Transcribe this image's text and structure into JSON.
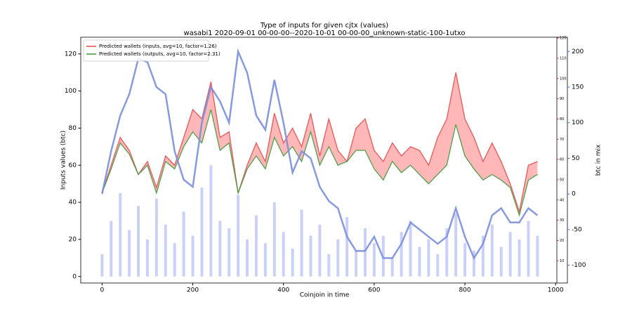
{
  "chart_data": {
    "type": "line",
    "title": "Type of inputs for given cjtx (values)",
    "subtitle": "wasabi1 2020-09-01 00-00-00--2020-10-01 00-00-00_unknown-static-100-1utxo",
    "x_label": "Coinjoin in time",
    "y_label": "Inputs values (btc)",
    "y2_label": "btc in mix",
    "x": [
      0,
      20,
      40,
      60,
      80,
      100,
      120,
      140,
      160,
      180,
      200,
      220,
      240,
      260,
      280,
      300,
      320,
      340,
      360,
      380,
      400,
      420,
      440,
      460,
      480,
      500,
      520,
      540,
      560,
      580,
      600,
      620,
      640,
      660,
      680,
      700,
      720,
      740,
      760,
      780,
      800,
      820,
      840,
      860,
      880,
      900,
      920,
      940,
      960
    ],
    "series": [
      {
        "name": "Predicted wallets (inputs, avg=10, factor=1.26)",
        "color": "#e8494a",
        "values": [
          45,
          60,
          75,
          68,
          55,
          62,
          48,
          65,
          60,
          75,
          90,
          85,
          105,
          75,
          78,
          45,
          60,
          72,
          62,
          88,
          72,
          80,
          70,
          88,
          65,
          85,
          68,
          62,
          80,
          85,
          68,
          62,
          72,
          65,
          70,
          68,
          60,
          75,
          85,
          110,
          85,
          75,
          62,
          72,
          62,
          50,
          35,
          60,
          62
        ]
      },
      {
        "name": "Predicted wallets (outputs, avg=10, factor=2.31)",
        "color": "#3a9a3a",
        "values": [
          45,
          58,
          72,
          66,
          55,
          60,
          45,
          62,
          58,
          70,
          78,
          72,
          90,
          68,
          72,
          45,
          58,
          65,
          58,
          75,
          65,
          70,
          62,
          78,
          60,
          70,
          60,
          62,
          68,
          68,
          58,
          52,
          62,
          56,
          60,
          55,
          50,
          55,
          60,
          82,
          65,
          58,
          52,
          55,
          52,
          48,
          33,
          52,
          55
        ]
      },
      {
        "color": "#7b8fdc",
        "axis": "y2",
        "style": "line",
        "values": [
          0,
          60,
          110,
          140,
          190,
          185,
          150,
          140,
          60,
          20,
          10,
          100,
          150,
          130,
          100,
          200,
          170,
          110,
          90,
          160,
          100,
          30,
          60,
          50,
          10,
          -10,
          -20,
          -60,
          -80,
          -80,
          -60,
          -90,
          -90,
          -70,
          -40,
          -50,
          -60,
          -70,
          -60,
          -20,
          -60,
          -90,
          -70,
          -30,
          -20,
          -40,
          -40,
          -20,
          -30
        ]
      },
      {
        "color": "#a9b0f3",
        "style": "bar",
        "values": [
          12,
          30,
          45,
          25,
          38,
          20,
          42,
          28,
          18,
          35,
          22,
          48,
          60,
          30,
          26,
          44,
          20,
          33,
          18,
          40,
          24,
          15,
          36,
          22,
          28,
          12,
          20,
          32,
          14,
          26,
          18,
          22,
          10,
          24,
          30,
          16,
          20,
          12,
          26,
          34,
          18,
          14,
          22,
          28,
          16,
          24,
          20,
          30,
          22
        ]
      }
    ],
    "fill_color": "#ffaaaa",
    "xlim": [
      -47,
      1026
    ],
    "xticks": [
      0,
      200,
      400,
      600,
      800,
      1000
    ],
    "ylim": [
      -3.5,
      129
    ],
    "yticks": [
      0,
      20,
      40,
      60,
      80,
      100,
      120
    ],
    "y2lim": [
      -125,
      220
    ],
    "y2ticks": [
      -100,
      -50,
      0,
      50,
      100,
      150,
      200
    ],
    "y2color": "#4a6fd0",
    "y3lim": [
      -1,
      120.4
    ],
    "y3ticks": [
      10,
      20,
      30,
      40,
      50,
      60,
      70,
      80,
      90,
      100,
      110,
      120
    ],
    "y3color": "#d62728",
    "legend": "upper left"
  }
}
